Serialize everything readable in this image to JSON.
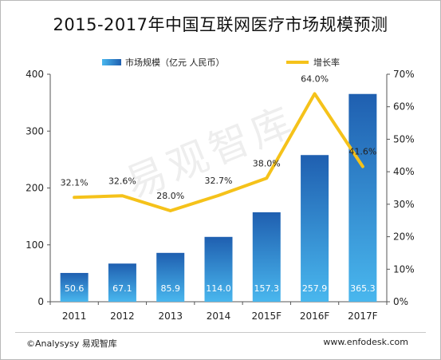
{
  "page": {
    "title": "2015-2017年中国互联网医疗市场规模预测"
  },
  "chart_data": {
    "type": "bar+line",
    "title": "2015-2017年中国互联网医疗市场规模预测",
    "categories": [
      "2011",
      "2012",
      "2013",
      "2014",
      "2015F",
      "2016F",
      "2017F"
    ],
    "series": [
      {
        "name": "市场规模（亿元 人民币）",
        "type": "bar",
        "axis": "left",
        "values": [
          50.6,
          67.1,
          85.9,
          114.0,
          157.3,
          257.9,
          365.3
        ],
        "labels": [
          "50.6",
          "67.1",
          "85.9",
          "114.0",
          "157.3",
          "257.9",
          "365.3"
        ]
      },
      {
        "name": "增长率",
        "type": "line",
        "axis": "right",
        "values": [
          32.1,
          32.6,
          28.0,
          32.7,
          38.0,
          64.0,
          41.6
        ],
        "labels": [
          "32.1%",
          "32.6%",
          "28.0%",
          "32.7%",
          "38.0%",
          "64.0%",
          "41.6%"
        ]
      }
    ],
    "y_left": {
      "min": 0,
      "max": 400,
      "ticks": [
        "0",
        "100",
        "200",
        "300",
        "400"
      ]
    },
    "y_right": {
      "min": 0,
      "max": 70,
      "ticks": [
        "0%",
        "10%",
        "20%",
        "30%",
        "40%",
        "50%",
        "60%",
        "70%"
      ]
    },
    "grid": false,
    "legend_position": "top",
    "colors": {
      "bar_top": "#1f5fb0",
      "bar_bottom": "#49b7ee",
      "line": "#f5c21a"
    }
  },
  "watermark": "易观智库",
  "footer": {
    "left": "©Analysysy 易观智库",
    "right": "www.enfodesk.com"
  }
}
